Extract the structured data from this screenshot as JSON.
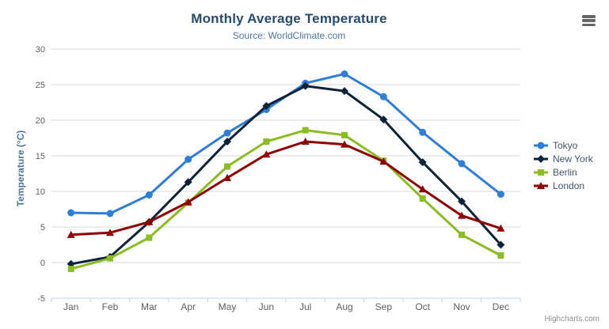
{
  "chart_data": {
    "type": "line",
    "title": "Monthly Average Temperature",
    "subtitle": "Source: WorldClimate.com",
    "xlabel": "",
    "ylabel": "Temperature (°C)",
    "categories": [
      "Jan",
      "Feb",
      "Mar",
      "Apr",
      "May",
      "Jun",
      "Jul",
      "Aug",
      "Sep",
      "Oct",
      "Nov",
      "Dec"
    ],
    "series": [
      {
        "name": "Tokyo",
        "marker": "circle",
        "color": "#2f7ed8",
        "values": [
          7.0,
          6.9,
          9.5,
          14.5,
          18.2,
          21.5,
          25.2,
          26.5,
          23.3,
          18.3,
          13.9,
          9.6
        ]
      },
      {
        "name": "New York",
        "marker": "diamond",
        "color": "#0d233a",
        "values": [
          -0.2,
          0.8,
          5.7,
          11.3,
          17.0,
          22.0,
          24.8,
          24.1,
          20.1,
          14.1,
          8.6,
          2.5
        ]
      },
      {
        "name": "Berlin",
        "marker": "square",
        "color": "#8bbc21",
        "values": [
          -0.9,
          0.6,
          3.5,
          8.4,
          13.5,
          17.0,
          18.6,
          17.9,
          14.3,
          9.0,
          3.9,
          1.0
        ]
      },
      {
        "name": "London",
        "marker": "triangle",
        "color": "#910000",
        "values": [
          3.9,
          4.2,
          5.7,
          8.5,
          11.9,
          15.2,
          17.0,
          16.6,
          14.2,
          10.3,
          6.6,
          4.8
        ]
      }
    ],
    "ylim": [
      -5,
      30
    ],
    "ytick_step": 5,
    "yticks": [
      "-5",
      "0",
      "5",
      "10",
      "15",
      "20",
      "25",
      "30"
    ],
    "grid": true,
    "legend_position": "right",
    "credits": "Highcharts.com",
    "styles": {
      "title_color": "#274b6d",
      "subtitle_color": "#4d759e",
      "axis_title_color": "#4d759e",
      "tick_label_color": "#606060",
      "grid_color": "#d8d8d8",
      "axis_line_color": "#c0d0e0",
      "legend_text_color": "#3e576f",
      "credits_color": "#909090",
      "menu_icon_color": "#666666"
    }
  },
  "menu": {
    "icon": "hamburger-icon",
    "tooltip": "Chart context menu"
  }
}
